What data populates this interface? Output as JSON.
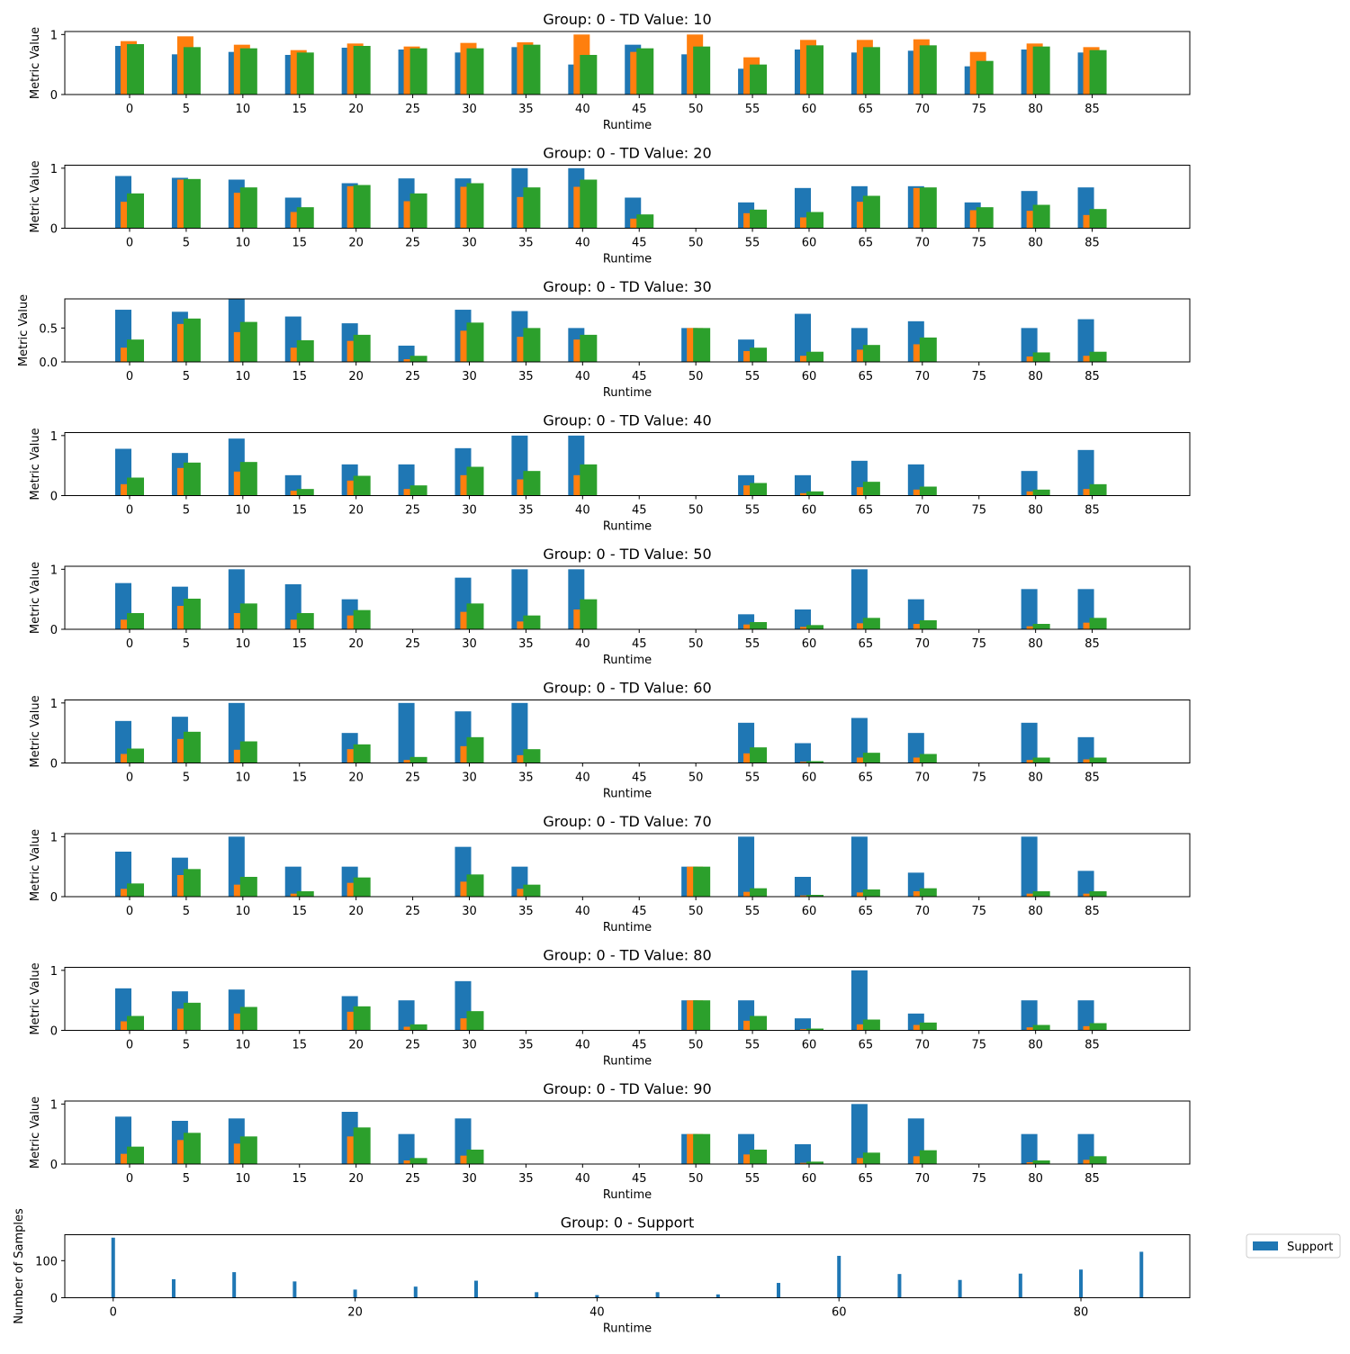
{
  "colors": {
    "blue": "#1f77b4",
    "orange": "#ff7f0e",
    "green": "#2ca02c"
  },
  "chart_data": [
    {
      "type": "bar",
      "title": "Group: 0 - TD Value: 10",
      "xlabel": "Runtime",
      "ylabel": "Metric Value",
      "categories": [
        "0",
        "5",
        "10",
        "15",
        "20",
        "25",
        "30",
        "35",
        "40",
        "45",
        "50",
        "55",
        "60",
        "65",
        "70",
        "75",
        "80",
        "85"
      ],
      "yticks": [
        "0",
        "1"
      ],
      "ylim": [
        0,
        1.05
      ],
      "series": [
        {
          "color": "blue",
          "values": [
            0.81,
            0.67,
            0.71,
            0.66,
            0.78,
            0.75,
            0.7,
            0.79,
            0.5,
            0.83,
            0.67,
            0.43,
            0.75,
            0.7,
            0.73,
            0.47,
            0.75,
            0.7
          ]
        },
        {
          "color": "orange",
          "values": [
            0.89,
            0.97,
            0.83,
            0.74,
            0.85,
            0.8,
            0.86,
            0.87,
            1.0,
            0.71,
            1.0,
            0.62,
            0.91,
            0.91,
            0.92,
            0.71,
            0.85,
            0.79
          ]
        },
        {
          "color": "green",
          "values": [
            0.84,
            0.79,
            0.77,
            0.7,
            0.81,
            0.77,
            0.77,
            0.83,
            0.66,
            0.77,
            0.8,
            0.5,
            0.82,
            0.79,
            0.82,
            0.56,
            0.8,
            0.74
          ]
        }
      ]
    },
    {
      "type": "bar",
      "title": "Group: 0 - TD Value: 20",
      "xlabel": "Runtime",
      "ylabel": "Metric Value",
      "categories": [
        "0",
        "5",
        "10",
        "15",
        "20",
        "25",
        "30",
        "35",
        "40",
        "45",
        "50",
        "55",
        "60",
        "65",
        "70",
        "75",
        "80",
        "85"
      ],
      "yticks": [
        "0",
        "1"
      ],
      "ylim": [
        0,
        1.05
      ],
      "series": [
        {
          "color": "blue",
          "values": [
            0.87,
            0.84,
            0.81,
            0.51,
            0.75,
            0.83,
            0.83,
            1.0,
            1.0,
            0.51,
            0,
            0.43,
            0.67,
            0.7,
            0.7,
            0.43,
            0.62,
            0.68
          ]
        },
        {
          "color": "orange",
          "values": [
            0.44,
            0.81,
            0.59,
            0.27,
            0.7,
            0.45,
            0.69,
            0.52,
            0.69,
            0.16,
            0,
            0.25,
            0.18,
            0.44,
            0.67,
            0.3,
            0.29,
            0.22
          ]
        },
        {
          "color": "green",
          "values": [
            0.58,
            0.82,
            0.68,
            0.35,
            0.72,
            0.58,
            0.75,
            0.68,
            0.81,
            0.23,
            0,
            0.31,
            0.27,
            0.54,
            0.68,
            0.35,
            0.39,
            0.32
          ]
        }
      ]
    },
    {
      "type": "bar",
      "title": "Group: 0 - TD Value: 30",
      "xlabel": "Runtime",
      "ylabel": "Metric Value",
      "categories": [
        "0",
        "5",
        "10",
        "15",
        "20",
        "25",
        "30",
        "35",
        "40",
        "45",
        "50",
        "55",
        "60",
        "65",
        "70",
        "75",
        "80",
        "85"
      ],
      "yticks": [
        "0.0",
        "0.5"
      ],
      "ylim": [
        0,
        0.93
      ],
      "series": [
        {
          "color": "blue",
          "values": [
            0.77,
            0.74,
            0.93,
            0.67,
            0.57,
            0.24,
            0.77,
            0.75,
            0.5,
            0,
            0.5,
            0.33,
            0.71,
            0.5,
            0.6,
            0,
            0.5,
            0.63
          ]
        },
        {
          "color": "orange",
          "values": [
            0.21,
            0.56,
            0.44,
            0.21,
            0.31,
            0.04,
            0.46,
            0.37,
            0.33,
            0,
            0.5,
            0.16,
            0.09,
            0.18,
            0.26,
            0,
            0.08,
            0.09
          ]
        },
        {
          "color": "green",
          "values": [
            0.33,
            0.64,
            0.59,
            0.32,
            0.4,
            0.09,
            0.58,
            0.5,
            0.4,
            0,
            0.5,
            0.21,
            0.15,
            0.25,
            0.36,
            0,
            0.14,
            0.15
          ]
        }
      ]
    },
    {
      "type": "bar",
      "title": "Group: 0 - TD Value: 40",
      "xlabel": "Runtime",
      "ylabel": "Metric Value",
      "categories": [
        "0",
        "5",
        "10",
        "15",
        "20",
        "25",
        "30",
        "35",
        "40",
        "45",
        "50",
        "55",
        "60",
        "65",
        "70",
        "75",
        "80",
        "85"
      ],
      "yticks": [
        "0",
        "1"
      ],
      "ylim": [
        0,
        1.05
      ],
      "series": [
        {
          "color": "blue",
          "values": [
            0.78,
            0.71,
            0.95,
            0.34,
            0.52,
            0.52,
            0.79,
            1.0,
            1.0,
            0,
            0,
            0.34,
            0.34,
            0.58,
            0.52,
            0,
            0.41,
            0.76
          ]
        },
        {
          "color": "orange",
          "values": [
            0.19,
            0.46,
            0.4,
            0.08,
            0.25,
            0.11,
            0.34,
            0.27,
            0.34,
            0,
            0,
            0.17,
            0.04,
            0.14,
            0.1,
            0,
            0.07,
            0.11
          ]
        },
        {
          "color": "green",
          "values": [
            0.3,
            0.55,
            0.56,
            0.11,
            0.33,
            0.17,
            0.48,
            0.41,
            0.52,
            0,
            0,
            0.21,
            0.07,
            0.23,
            0.15,
            0,
            0.1,
            0.19
          ]
        }
      ]
    },
    {
      "type": "bar",
      "title": "Group: 0 - TD Value: 50",
      "xlabel": "Runtime",
      "ylabel": "Metric Value",
      "categories": [
        "0",
        "5",
        "10",
        "15",
        "20",
        "25",
        "30",
        "35",
        "40",
        "45",
        "50",
        "55",
        "60",
        "65",
        "70",
        "75",
        "80",
        "85"
      ],
      "yticks": [
        "0",
        "1"
      ],
      "ylim": [
        0,
        1.05
      ],
      "series": [
        {
          "color": "blue",
          "values": [
            0.77,
            0.71,
            1.0,
            0.75,
            0.5,
            0,
            0.86,
            1.0,
            1.0,
            0,
            0,
            0.25,
            0.33,
            1.0,
            0.5,
            0,
            0.67,
            0.67
          ]
        },
        {
          "color": "orange",
          "values": [
            0.16,
            0.39,
            0.27,
            0.16,
            0.23,
            0,
            0.29,
            0.13,
            0.33,
            0,
            0,
            0.08,
            0.04,
            0.1,
            0.09,
            0,
            0.05,
            0.11
          ]
        },
        {
          "color": "green",
          "values": [
            0.27,
            0.51,
            0.43,
            0.27,
            0.32,
            0,
            0.43,
            0.23,
            0.5,
            0,
            0,
            0.12,
            0.07,
            0.19,
            0.15,
            0,
            0.09,
            0.19
          ]
        }
      ]
    },
    {
      "type": "bar",
      "title": "Group: 0 - TD Value: 60",
      "xlabel": "Runtime",
      "ylabel": "Metric Value",
      "categories": [
        "0",
        "5",
        "10",
        "15",
        "20",
        "25",
        "30",
        "35",
        "40",
        "45",
        "50",
        "55",
        "60",
        "65",
        "70",
        "75",
        "80",
        "85"
      ],
      "yticks": [
        "0",
        "1"
      ],
      "ylim": [
        0,
        1.05
      ],
      "series": [
        {
          "color": "blue",
          "values": [
            0.7,
            0.77,
            1.0,
            0,
            0.5,
            1.0,
            0.86,
            1.0,
            0,
            0,
            0,
            0.67,
            0.33,
            0.75,
            0.5,
            0,
            0.67,
            0.43
          ]
        },
        {
          "color": "orange",
          "values": [
            0.15,
            0.4,
            0.22,
            0,
            0.23,
            0.05,
            0.28,
            0.13,
            0,
            0,
            0,
            0.16,
            0.02,
            0.09,
            0.09,
            0,
            0.05,
            0.06
          ]
        },
        {
          "color": "green",
          "values": [
            0.24,
            0.52,
            0.36,
            0,
            0.31,
            0.1,
            0.43,
            0.23,
            0,
            0,
            0,
            0.26,
            0.03,
            0.17,
            0.15,
            0,
            0.09,
            0.09
          ]
        }
      ]
    },
    {
      "type": "bar",
      "title": "Group: 0 - TD Value: 70",
      "xlabel": "Runtime",
      "ylabel": "Metric Value",
      "categories": [
        "0",
        "5",
        "10",
        "15",
        "20",
        "25",
        "30",
        "35",
        "40",
        "45",
        "50",
        "55",
        "60",
        "65",
        "70",
        "75",
        "80",
        "85"
      ],
      "yticks": [
        "0",
        "1"
      ],
      "ylim": [
        0,
        1.05
      ],
      "series": [
        {
          "color": "blue",
          "values": [
            0.75,
            0.65,
            1.0,
            0.5,
            0.5,
            0,
            0.83,
            0.5,
            0,
            0,
            0.5,
            1.0,
            0.33,
            1.0,
            0.4,
            0,
            1.0,
            0.43
          ]
        },
        {
          "color": "orange",
          "values": [
            0.13,
            0.36,
            0.2,
            0.05,
            0.23,
            0,
            0.25,
            0.13,
            0,
            0,
            0.5,
            0.08,
            0.02,
            0.07,
            0.09,
            0,
            0.05,
            0.05
          ]
        },
        {
          "color": "green",
          "values": [
            0.22,
            0.46,
            0.33,
            0.09,
            0.32,
            0,
            0.37,
            0.2,
            0,
            0,
            0.5,
            0.14,
            0.03,
            0.12,
            0.14,
            0,
            0.09,
            0.09
          ]
        }
      ]
    },
    {
      "type": "bar",
      "title": "Group: 0 - TD Value: 80",
      "xlabel": "Runtime",
      "ylabel": "Metric Value",
      "categories": [
        "0",
        "5",
        "10",
        "15",
        "20",
        "25",
        "30",
        "35",
        "40",
        "45",
        "50",
        "55",
        "60",
        "65",
        "70",
        "75",
        "80",
        "85"
      ],
      "yticks": [
        "0",
        "1"
      ],
      "ylim": [
        0,
        1.05
      ],
      "series": [
        {
          "color": "blue",
          "values": [
            0.7,
            0.65,
            0.68,
            0,
            0.57,
            0.5,
            0.82,
            0,
            0,
            0,
            0.5,
            0.5,
            0.2,
            1.0,
            0.28,
            0,
            0.5,
            0.5
          ]
        },
        {
          "color": "orange",
          "values": [
            0.15,
            0.36,
            0.28,
            0,
            0.31,
            0.06,
            0.2,
            0,
            0,
            0,
            0.5,
            0.16,
            0.02,
            0.1,
            0.09,
            0,
            0.05,
            0.07
          ]
        },
        {
          "color": "green",
          "values": [
            0.24,
            0.46,
            0.39,
            0,
            0.4,
            0.1,
            0.32,
            0,
            0,
            0,
            0.5,
            0.24,
            0.03,
            0.18,
            0.13,
            0,
            0.09,
            0.12
          ]
        }
      ]
    },
    {
      "type": "bar",
      "title": "Group: 0 - TD Value: 90",
      "xlabel": "Runtime",
      "ylabel": "Metric Value",
      "categories": [
        "0",
        "5",
        "10",
        "15",
        "20",
        "25",
        "30",
        "35",
        "40",
        "45",
        "50",
        "55",
        "60",
        "65",
        "70",
        "75",
        "80",
        "85"
      ],
      "yticks": [
        "0",
        "1"
      ],
      "ylim": [
        0,
        1.05
      ],
      "series": [
        {
          "color": "blue",
          "values": [
            0.79,
            0.72,
            0.76,
            0,
            0.87,
            0.5,
            0.76,
            0,
            0,
            0,
            0.5,
            0.5,
            0.33,
            1.0,
            0.76,
            0,
            0.5,
            0.5
          ]
        },
        {
          "color": "orange",
          "values": [
            0.17,
            0.4,
            0.34,
            0,
            0.46,
            0.06,
            0.14,
            0,
            0,
            0,
            0.5,
            0.16,
            0.02,
            0.1,
            0.13,
            0,
            0.03,
            0.07
          ]
        },
        {
          "color": "green",
          "values": [
            0.29,
            0.52,
            0.46,
            0,
            0.61,
            0.1,
            0.24,
            0,
            0,
            0,
            0.5,
            0.24,
            0.04,
            0.19,
            0.23,
            0,
            0.06,
            0.13
          ]
        }
      ]
    },
    {
      "type": "bar",
      "title": "Group: 0 - Support",
      "xlabel": "Runtime",
      "ylabel": "Number of Samples",
      "x": [
        0,
        5,
        10,
        15,
        20,
        25,
        30,
        35,
        40,
        45,
        50,
        55,
        60,
        65,
        70,
        75,
        80,
        85
      ],
      "values": [
        162,
        50,
        69,
        44,
        22,
        30,
        46,
        15,
        7,
        15,
        9,
        40,
        113,
        64,
        48,
        65,
        76,
        124
      ],
      "xticks": [
        "0",
        "20",
        "40",
        "60",
        "80"
      ],
      "yticks": [
        "0",
        "100"
      ],
      "ylim": [
        0,
        170
      ],
      "xlim": [
        -4,
        89
      ],
      "legend": {
        "label": "Support",
        "placement": "right"
      },
      "series_color": "blue"
    }
  ]
}
